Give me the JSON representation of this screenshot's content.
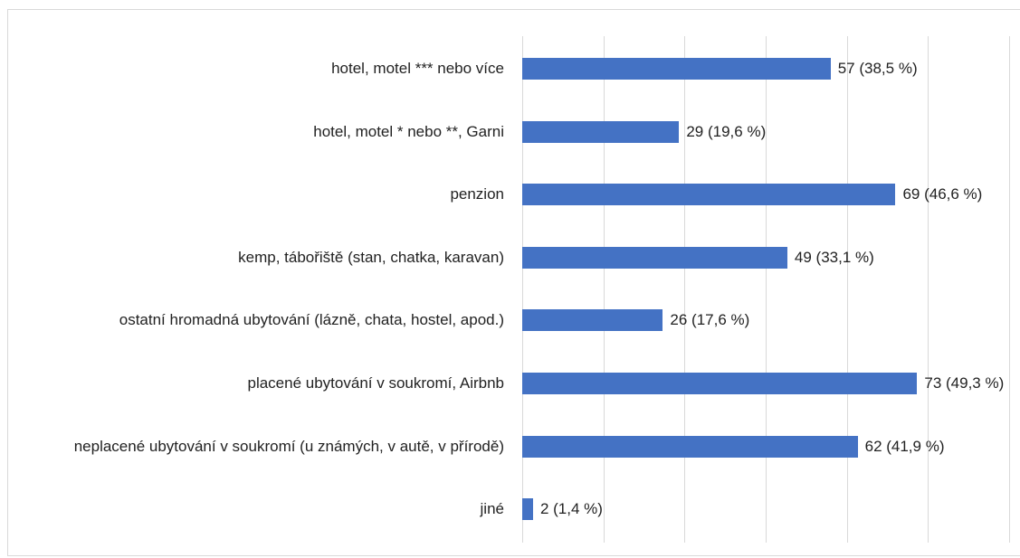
{
  "chart_data": {
    "type": "bar",
    "orientation": "horizontal",
    "categories": [
      "hotel, motel *** nebo více",
      "hotel, motel * nebo **, Garni",
      "penzion",
      "kemp, tábořiště (stan, chatka, karavan)",
      "ostatní hromadná ubytování (lázně, chata, hostel, apod.)",
      "placené ubytování v soukromí, Airbnb",
      "neplacené ubytování v soukromí (u známých, v autě, v přírodě)",
      "jiné"
    ],
    "values": [
      57,
      29,
      69,
      49,
      26,
      73,
      62,
      2
    ],
    "value_labels": [
      "57 (38,5 %)",
      "29 (19,6 %)",
      "69 (46,6 %)",
      "49 (33,1 %)",
      "26 (17,6 %)",
      "73 (49,3 %)",
      "62 (41,9 %)",
      "2 (1,4 %)"
    ],
    "color": "#4472c4",
    "xlim": [
      0,
      90
    ],
    "xticks": [
      0,
      15,
      30,
      45,
      60,
      75,
      90
    ],
    "grid": true
  }
}
